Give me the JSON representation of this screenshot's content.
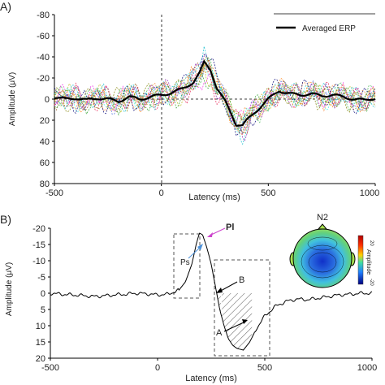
{
  "chart_data": [
    {
      "type": "line",
      "panel_label": "A)",
      "xlabel": "Latency (ms)",
      "ylabel": "Amplitude (μV)",
      "xlim": [
        -500,
        1000
      ],
      "ylim": [
        -80,
        80
      ],
      "y_inverted": true,
      "xticks": [
        "-500",
        "0",
        "500",
        "1000"
      ],
      "yticks": [
        "-80",
        "-60",
        "-40",
        "-20",
        "0",
        "20",
        "40",
        "60",
        "80"
      ],
      "legend": "Averaged ERP",
      "legend_position": "top-right",
      "series": [
        {
          "name": "Averaged ERP",
          "x": [
            -500,
            -450,
            -400,
            -350,
            -300,
            -250,
            -200,
            -150,
            -100,
            -50,
            0,
            50,
            100,
            150,
            180,
            200,
            230,
            260,
            300,
            330,
            350,
            380,
            400,
            450,
            500,
            550,
            600,
            650,
            700,
            750,
            800,
            850,
            900,
            950,
            1000
          ],
          "values": [
            -2,
            0,
            -1,
            1,
            -1,
            0,
            2,
            -2,
            0,
            -2,
            -4,
            -6,
            -10,
            -16,
            -25,
            -35,
            -28,
            -10,
            3,
            15,
            24,
            25,
            20,
            10,
            0,
            -8,
            -5,
            -4,
            -5,
            -3,
            -4,
            -2,
            0,
            1,
            -1
          ]
        }
      ],
      "individual_traces_count": 14,
      "individual_trace_colors": [
        "#e6194b",
        "#3cb44b",
        "#4363d8",
        "#f58231",
        "#911eb4",
        "#46f0f0",
        "#f032e6",
        "#bcbd22",
        "#9a6324",
        "#000075",
        "#808000",
        "#17becf",
        "#ff7f0e",
        "#2ca02c"
      ]
    },
    {
      "type": "line",
      "panel_label": "B)",
      "xlabel": "Latency (ms)",
      "ylabel": "Amplitude (μV)",
      "xlim": [
        -500,
        1000
      ],
      "ylim": [
        -20,
        20
      ],
      "y_inverted": true,
      "xticks": [
        "-500",
        "0",
        "500",
        "1000"
      ],
      "yticks": [
        "-20",
        "-15",
        "-10",
        "-5",
        "0",
        "5",
        "10",
        "15",
        "20"
      ],
      "series": [
        {
          "x": [
            -500,
            -450,
            -400,
            -350,
            -300,
            -250,
            -200,
            -150,
            -100,
            -50,
            0,
            50,
            100,
            130,
            160,
            180,
            195,
            210,
            230,
            250,
            270,
            290,
            310,
            330,
            350,
            370,
            400,
            430,
            460,
            500,
            550,
            600,
            650,
            700,
            750,
            800,
            850,
            900,
            950,
            1000
          ],
          "values": [
            0,
            0.3,
            0.5,
            0.7,
            1.0,
            0.8,
            0.5,
            0.3,
            0,
            0.2,
            0.5,
            0.3,
            -1,
            -3.5,
            -9,
            -15,
            -18.5,
            -18,
            -14,
            -9,
            -2,
            5,
            10,
            14,
            16,
            17,
            17.5,
            15,
            11,
            7,
            4,
            2.5,
            1.8,
            2,
            1.5,
            1,
            0.5,
            0.3,
            0,
            0
          ]
        }
      ],
      "annotations": [
        {
          "label": "Pl",
          "color": "#cc44cc"
        },
        {
          "label": "Ps",
          "color": "#4a90d9"
        },
        {
          "label": "B",
          "color": "#000000"
        },
        {
          "label": "A",
          "color": "#000000"
        }
      ],
      "inset": {
        "title": "N2",
        "colorbar_label": "Amplitude",
        "colorbar_ticks": [
          "20",
          "-20"
        ]
      }
    }
  ]
}
